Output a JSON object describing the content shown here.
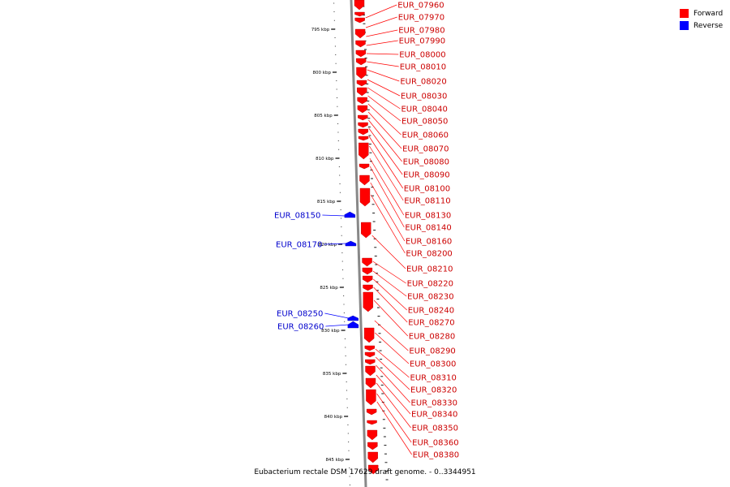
{
  "ticks": [
    "795 kbp",
    "800 kbp",
    "805 kbp",
    "810 kbp",
    "815 kbp",
    "820 kbp",
    "825 kbp",
    "830 kbp",
    "835 kbp",
    "840 kbp",
    "845 kbp"
  ],
  "forward_labels": [
    "EUR_07960",
    "EUR_07970",
    "EUR_07980",
    "EUR_07990",
    "EUR_08000",
    "EUR_08010",
    "EUR_08020",
    "EUR_08030",
    "EUR_08040",
    "EUR_08050",
    "EUR_08060",
    "EUR_08070",
    "EUR_08080",
    "EUR_08090",
    "EUR_08100",
    "EUR_08110",
    "EUR_08130",
    "EUR_08140",
    "EUR_08160",
    "EUR_08200",
    "EUR_08210",
    "EUR_08220",
    "EUR_08230",
    "EUR_08240",
    "EUR_08270",
    "EUR_08280",
    "EUR_08290",
    "EUR_08300",
    "EUR_08310",
    "EUR_08320",
    "EUR_08330",
    "EUR_08340",
    "EUR_08350",
    "EUR_08360",
    "EUR_08380"
  ],
  "reverse_labels": [
    "EUR_08150",
    "EUR_08170",
    "EUR_08250",
    "EUR_08260"
  ],
  "legend": {
    "forward": {
      "label": "Forward",
      "color": "#ff0000"
    },
    "reverse": {
      "label": "Reverse",
      "color": "#0000ff"
    }
  },
  "colors": {
    "forward": "#ff0000",
    "reverse": "#0000ff",
    "backbone": "#888888"
  },
  "footer": "Eubacterium rectale DSM 17629 draft genome. - 0..3344951"
}
